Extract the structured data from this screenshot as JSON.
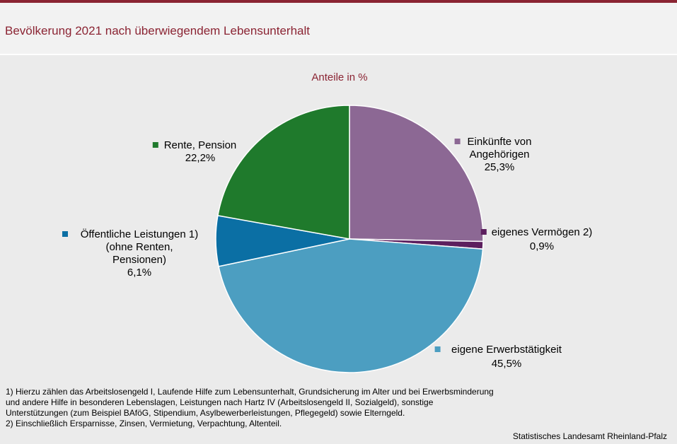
{
  "header": {
    "title": "Bevölkerung 2021 nach überwiegendem Lebensunterhalt"
  },
  "chart_data": {
    "type": "pie",
    "subtitle": "Anteile in %",
    "start_angle_deg": 0,
    "direction": "clockwise",
    "slices": [
      {
        "label": [
          "Einkünfte von",
          "Angehörigen"
        ],
        "value": 25.3,
        "value_label": "25,3%",
        "color": "#8c6894"
      },
      {
        "label": [
          "eigenes Vermögen 2)"
        ],
        "value": 0.9,
        "value_label": "0,9%",
        "color": "#5c1f5e"
      },
      {
        "label": [
          "eigene Erwerbstätigkeit"
        ],
        "value": 45.5,
        "value_label": "45,5%",
        "color": "#4c9ec1"
      },
      {
        "label": [
          "Öffentliche Leistungen 1)",
          "(ohne Renten,",
          "Pensionen)"
        ],
        "value": 6.1,
        "value_label": "6,1%",
        "color": "#0b6fa4"
      },
      {
        "label": [
          "Rente, Pension"
        ],
        "value": 22.2,
        "value_label": "22,2%",
        "color": "#1f7a2c"
      }
    ]
  },
  "footnotes": [
    "1) Hierzu zählen das Arbeitslosengeld I, Laufende Hilfe zum Lebensunterhalt, Grundsicherung im Alter und bei Erwerbsminderung und andere Hilfe in besonderen Lebenslagen, Leistungen nach Hartz IV (Arbeitslosengeld II, Sozialgeld), sonstige Unterstützungen (zum Beispiel BAföG, Stipendium, Asylbewerberleistungen, Pflegegeld) sowie Elterngeld.",
    "2) Einschließlich Ersparnisse, Zinsen, Vermietung, Verpachtung, Altenteil."
  ],
  "source": "Statistisches Landesamt Rheinland-Pfalz"
}
